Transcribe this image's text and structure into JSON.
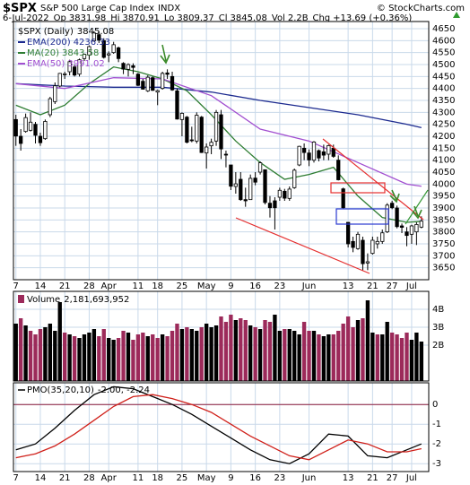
{
  "header": {
    "symbol": "$SPX",
    "name": "S&P 500 Large Cap Index",
    "exchange": "INDX",
    "copyright": "© StockCharts.com",
    "date": "6-Jul-2022",
    "fields": [
      {
        "label": "Op",
        "value": "3831.98"
      },
      {
        "label": "Hi",
        "value": "3870.91"
      },
      {
        "label": "Lo",
        "value": "3809.37"
      },
      {
        "label": "Cl",
        "value": "3845.08"
      },
      {
        "label": "Vol",
        "value": "2.2B"
      },
      {
        "label": "Chg",
        "value": "+13.69 (+0.36%)"
      }
    ]
  },
  "chart_data": [
    {
      "type": "candlestick",
      "name": "$SPX (Daily)",
      "legend_value": "3845.08",
      "color": "#000000",
      "up_fill": "#ffffff",
      "down_fill": "#000000",
      "grid": true,
      "xlim": [
        -0.5,
        84.5
      ],
      "xticks": [
        {
          "value": 0,
          "label": "7"
        },
        {
          "value": 5,
          "label": "14"
        },
        {
          "value": 10,
          "label": "21"
        },
        {
          "value": 15,
          "label": "28"
        },
        {
          "value": 19,
          "label": "Apr"
        },
        {
          "value": 25,
          "label": "11"
        },
        {
          "value": 29,
          "label": "18"
        },
        {
          "value": 34,
          "label": "25"
        },
        {
          "value": 39,
          "label": "May"
        },
        {
          "value": 44,
          "label": "9"
        },
        {
          "value": 49,
          "label": "16"
        },
        {
          "value": 54,
          "label": "23"
        },
        {
          "value": 60,
          "label": "Jun"
        },
        {
          "value": 68,
          "label": "13"
        },
        {
          "value": 73,
          "label": "21"
        },
        {
          "value": 77,
          "label": "27"
        },
        {
          "value": 81,
          "label": "Jul"
        }
      ],
      "ylim": [
        3600,
        4680
      ],
      "yticks": [
        3650,
        3700,
        3750,
        3800,
        3850,
        3900,
        3950,
        4000,
        4050,
        4100,
        4150,
        4200,
        4250,
        4300,
        4350,
        4400,
        4450,
        4500,
        4550,
        4600,
        4650
      ],
      "open": [
        4270,
        4200,
        4220,
        4225,
        4250,
        4200,
        4190,
        4290,
        4345,
        4410,
        4460,
        4470,
        4490,
        4460,
        4525,
        4540,
        4600,
        4625,
        4600,
        4540,
        4550,
        4570,
        4505,
        4480,
        4495,
        4460,
        4430,
        4390,
        4445,
        4385,
        4400,
        4465,
        4450,
        4390,
        4270,
        4280,
        4185,
        4180,
        4280,
        4130,
        4160,
        4180,
        4290,
        4125,
        4080,
        3990,
        4020,
        3935,
        3935,
        4025,
        4050,
        4060,
        3920,
        3930,
        3945,
        3970,
        3940,
        3985,
        4080,
        4150,
        4130,
        4100,
        4140,
        4135,
        4125,
        4150,
        4100,
        3980,
        3840,
        3760,
        3730,
        3765,
        3670,
        3710,
        3750,
        3760,
        3800,
        3920,
        3900,
        3825,
        3800,
        3790,
        3800,
        3820
      ],
      "high": [
        4290,
        4230,
        4295,
        4300,
        4260,
        4215,
        4270,
        4365,
        4425,
        4465,
        4470,
        4520,
        4500,
        4525,
        4545,
        4580,
        4640,
        4640,
        4610,
        4555,
        4595,
        4575,
        4510,
        4505,
        4505,
        4465,
        4440,
        4455,
        4450,
        4395,
        4470,
        4480,
        4470,
        4400,
        4300,
        4285,
        4240,
        4300,
        4285,
        4170,
        4190,
        4310,
        4310,
        4140,
        4080,
        4050,
        4050,
        3985,
        4040,
        4050,
        4095,
        4060,
        3950,
        3945,
        3985,
        3980,
        3990,
        4065,
        4160,
        4170,
        4145,
        4180,
        4145,
        4165,
        4165,
        4165,
        4120,
        3985,
        3840,
        3780,
        3800,
        3780,
        3710,
        3780,
        3780,
        3810,
        3920,
        3930,
        3910,
        3835,
        3820,
        3830,
        3840,
        3865
      ],
      "low": [
        4160,
        4140,
        4215,
        4220,
        4170,
        4160,
        4185,
        4280,
        4335,
        4405,
        4440,
        4455,
        4450,
        4450,
        4515,
        4520,
        4595,
        4590,
        4525,
        4510,
        4545,
        4510,
        4460,
        4450,
        4460,
        4410,
        4395,
        4385,
        4390,
        4330,
        4395,
        4440,
        4390,
        4270,
        4200,
        4170,
        4175,
        4170,
        4130,
        4065,
        4125,
        4160,
        4105,
        4070,
        3975,
        3960,
        3930,
        3905,
        3935,
        3995,
        4040,
        3915,
        3860,
        3810,
        3930,
        3930,
        3930,
        3980,
        4075,
        4100,
        4075,
        4090,
        4095,
        4100,
        4100,
        4110,
        4015,
        3895,
        3735,
        3715,
        3725,
        3640,
        3640,
        3705,
        3730,
        3750,
        3795,
        3895,
        3815,
        3795,
        3740,
        3750,
        3745,
        3815
      ],
      "close": [
        4201,
        4170,
        4278,
        4259,
        4204,
        4173,
        4262,
        4357,
        4411,
        4463,
        4461,
        4512,
        4456,
        4520,
        4543,
        4575,
        4632,
        4602,
        4530,
        4545,
        4583,
        4525,
        4481,
        4500,
        4488,
        4413,
        4397,
        4447,
        4392,
        4391,
        4463,
        4459,
        4394,
        4272,
        4296,
        4175,
        4184,
        4288,
        4132,
        4155,
        4175,
        4300,
        4147,
        4123,
        3991,
        4001,
        3935,
        3930,
        4024,
        4008,
        4089,
        3923,
        3901,
        3901,
        3974,
        3941,
        3979,
        4058,
        4158,
        4132,
        4101,
        4176,
        4109,
        4121,
        4161,
        4116,
        4018,
        3901,
        3750,
        3735,
        3790,
        3667,
        3675,
        3765,
        3760,
        3796,
        3912,
        3901,
        3822,
        3819,
        3785,
        3825,
        3831,
        3845
      ],
      "series": [
        {
          "name": "EMA(200)",
          "legend_value": "4236.33",
          "color": "#1c2a8f",
          "x": [
            0,
            10,
            20,
            30,
            40,
            50,
            60,
            70,
            80,
            83
          ],
          "values": [
            4420,
            4410,
            4405,
            4405,
            4385,
            4350,
            4320,
            4290,
            4250,
            4236
          ]
        },
        {
          "name": "MA(20)",
          "legend_value": "3843.58",
          "color": "#2e7d32",
          "x": [
            0,
            5,
            10,
            15,
            20,
            25,
            30,
            35,
            40,
            45,
            50,
            55,
            60,
            65,
            70,
            75,
            80,
            83
          ],
          "values": [
            4330,
            4290,
            4330,
            4420,
            4490,
            4470,
            4440,
            4390,
            4290,
            4180,
            4090,
            4020,
            4040,
            4070,
            3950,
            3860,
            3840,
            3844
          ]
        },
        {
          "name": "EMA(50)",
          "legend_value": "3991.02",
          "color": "#a24fd0",
          "x": [
            0,
            10,
            20,
            30,
            40,
            50,
            60,
            70,
            80,
            83
          ],
          "values": [
            4420,
            4400,
            4445,
            4440,
            4370,
            4230,
            4180,
            4090,
            4000,
            3991
          ]
        }
      ]
    },
    {
      "type": "bar",
      "title": "Volume",
      "title_value": "2,181,693,952",
      "up_color": "#000000",
      "down_color": "#9c2a5a",
      "grid": true,
      "xlim": [
        -0.5,
        84.5
      ],
      "xticks": [
        0,
        5,
        10,
        15,
        19,
        25,
        29,
        34,
        39,
        44,
        49,
        54,
        60,
        68,
        73,
        77,
        81
      ],
      "ylim": [
        0,
        5
      ],
      "yticks": [
        {
          "value": 2,
          "label": "2B"
        },
        {
          "value": 3,
          "label": "3B"
        },
        {
          "value": 4,
          "label": "4B"
        }
      ],
      "values": [
        3.2,
        3.5,
        3.1,
        2.8,
        2.6,
        2.9,
        3.0,
        3.2,
        2.8,
        4.4,
        2.7,
        2.6,
        2.5,
        2.4,
        2.6,
        2.7,
        2.9,
        2.5,
        2.9,
        2.4,
        2.3,
        2.4,
        2.8,
        2.7,
        2.3,
        2.6,
        2.7,
        2.5,
        2.6,
        2.4,
        2.6,
        2.5,
        2.8,
        3.2,
        2.9,
        3.0,
        2.9,
        2.8,
        3.0,
        3.2,
        3.0,
        3.1,
        3.6,
        3.3,
        3.7,
        3.4,
        3.5,
        3.4,
        3.1,
        3.0,
        2.9,
        3.4,
        3.3,
        3.7,
        2.8,
        2.9,
        2.9,
        2.8,
        2.6,
        3.3,
        2.8,
        2.8,
        2.6,
        2.5,
        2.6,
        2.6,
        2.8,
        3.2,
        3.6,
        3.0,
        3.4,
        3.5,
        4.5,
        2.7,
        2.6,
        2.6,
        3.3,
        2.7,
        2.6,
        2.4,
        2.7,
        2.3,
        2.7,
        2.2
      ]
    },
    {
      "type": "line",
      "title": "PMO(35,20,10)",
      "title_value": "-2.00, -2.24",
      "zero_line_color": "#8b1a3a",
      "grid": true,
      "xlim": [
        -0.5,
        84.5
      ],
      "xticks": [
        {
          "value": 0,
          "label": "7"
        },
        {
          "value": 5,
          "label": "14"
        },
        {
          "value": 10,
          "label": "21"
        },
        {
          "value": 15,
          "label": "28"
        },
        {
          "value": 19,
          "label": "Apr"
        },
        {
          "value": 25,
          "label": "11"
        },
        {
          "value": 29,
          "label": "18"
        },
        {
          "value": 34,
          "label": "25"
        },
        {
          "value": 39,
          "label": "May"
        },
        {
          "value": 44,
          "label": "9"
        },
        {
          "value": 49,
          "label": "16"
        },
        {
          "value": 54,
          "label": "23"
        },
        {
          "value": 60,
          "label": "Jun"
        },
        {
          "value": 68,
          "label": "13"
        },
        {
          "value": 73,
          "label": "21"
        },
        {
          "value": 77,
          "label": "27"
        },
        {
          "value": 81,
          "label": "Jul"
        }
      ],
      "ylim": [
        -3.4,
        1.1
      ],
      "yticks": [
        0,
        -1,
        -2,
        -3
      ],
      "series": [
        {
          "color": "#000000",
          "x": [
            0,
            4,
            8,
            12,
            16,
            20,
            24,
            28,
            32,
            36,
            40,
            44,
            48,
            52,
            56,
            60,
            64,
            68,
            72,
            76,
            80,
            83
          ],
          "values": [
            -2.3,
            -2.0,
            -1.2,
            -0.3,
            0.5,
            0.9,
            0.8,
            0.4,
            0.0,
            -0.5,
            -1.1,
            -1.7,
            -2.3,
            -2.8,
            -3.0,
            -2.5,
            -1.5,
            -1.6,
            -2.6,
            -2.7,
            -2.3,
            -2.0
          ]
        },
        {
          "color": "#d0201a",
          "x": [
            0,
            4,
            8,
            12,
            16,
            20,
            24,
            28,
            32,
            36,
            40,
            44,
            48,
            52,
            56,
            60,
            64,
            68,
            72,
            76,
            80,
            83
          ],
          "values": [
            -2.7,
            -2.5,
            -2.1,
            -1.5,
            -0.8,
            -0.1,
            0.4,
            0.5,
            0.3,
            0.0,
            -0.4,
            -1.0,
            -1.6,
            -2.1,
            -2.6,
            -2.8,
            -2.3,
            -1.8,
            -2.0,
            -2.4,
            -2.4,
            -2.24
          ]
        }
      ]
    }
  ]
}
